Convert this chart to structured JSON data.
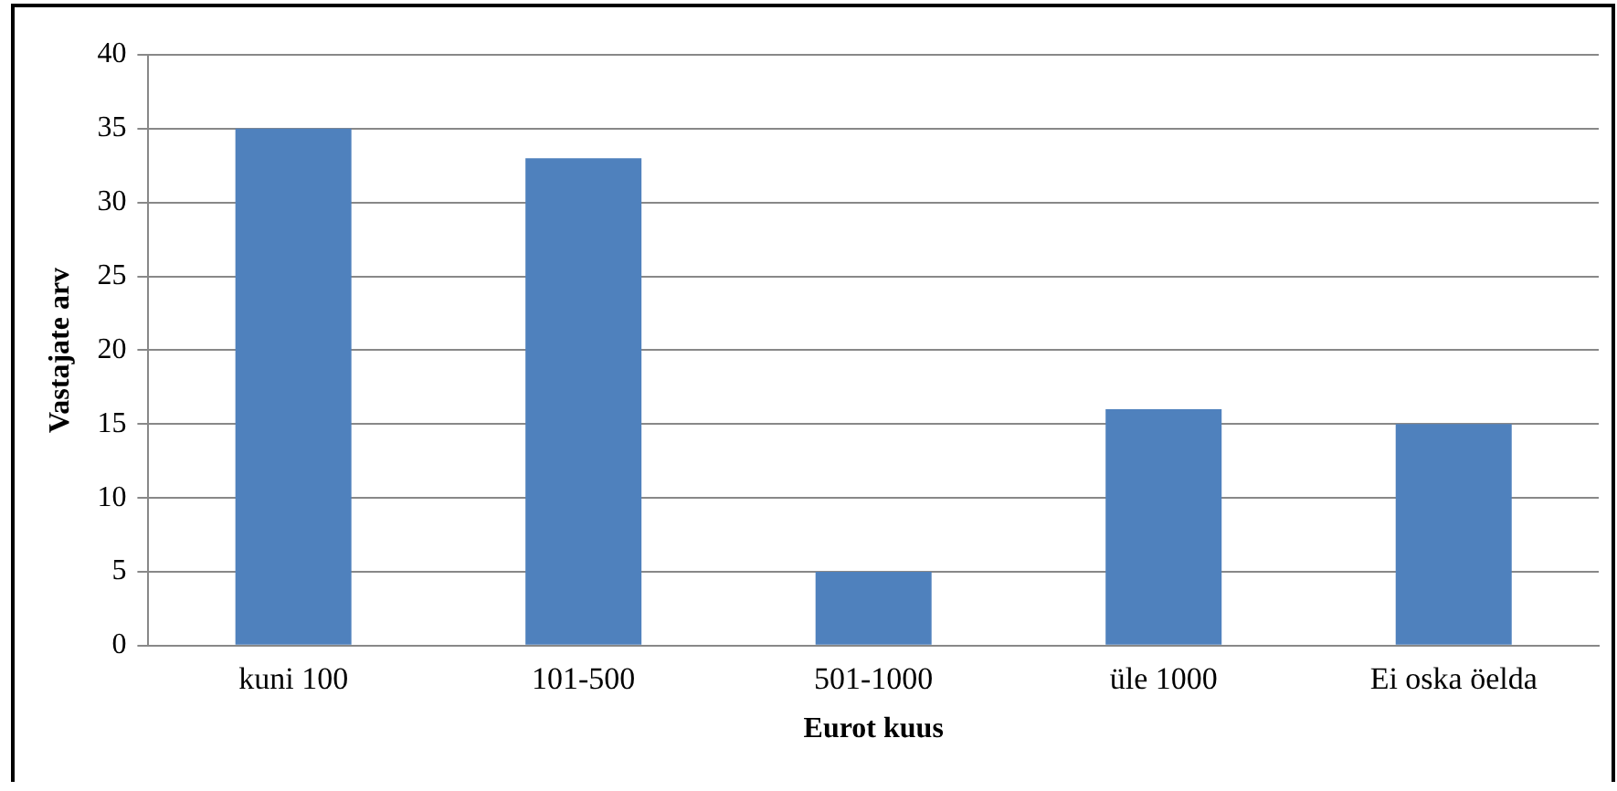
{
  "chart_data": {
    "type": "bar",
    "xlabel": "Eurot kuus",
    "ylabel": "Vastajate arv",
    "categories": [
      "kuni 100",
      "101-500",
      "501-1000",
      "üle 1000",
      "Ei oska öelda"
    ],
    "values": [
      35,
      33,
      5,
      16,
      15
    ],
    "color": "#4f81bd",
    "ylim": [
      0,
      40
    ],
    "yticks": [
      0,
      5,
      10,
      15,
      20,
      25,
      30,
      35,
      40
    ],
    "grid": "y",
    "legend": false
  }
}
